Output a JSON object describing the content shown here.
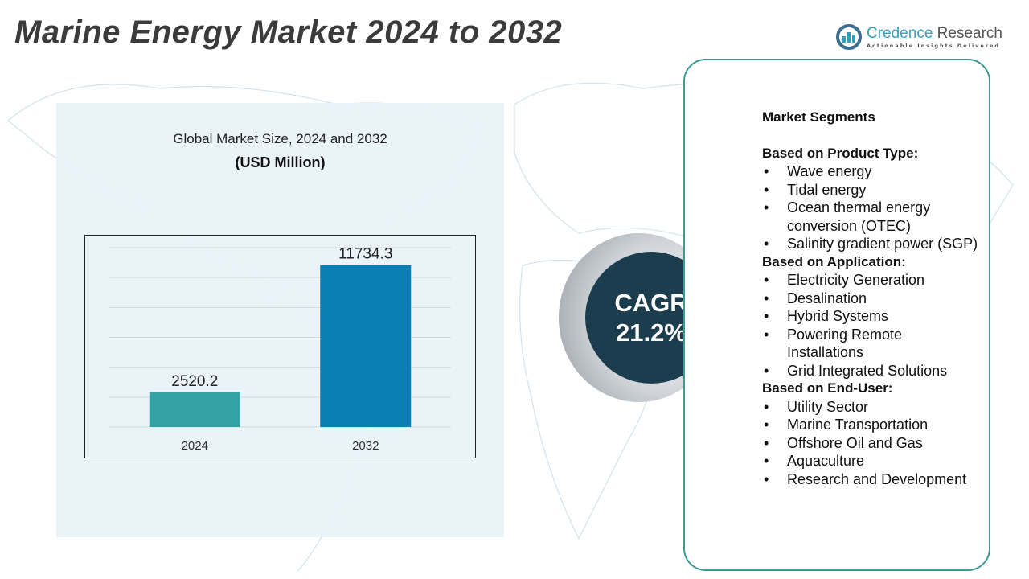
{
  "title": "Marine Energy Market 2024 to 2032",
  "logo": {
    "name_part1": "Credence",
    "name_part2": "Research",
    "tagline": "Actionable Insights Delivered"
  },
  "chart_data": {
    "type": "bar",
    "title": "Global Market Size, 2024 and 2032",
    "subtitle": "(USD Million)",
    "categories": [
      "2024",
      "2032"
    ],
    "values": [
      2520.2,
      11734.3
    ],
    "data_labels": [
      "2520.2",
      "11734.3"
    ],
    "colors": [
      "#35a3a3",
      "#0a7fb3"
    ],
    "grid": true,
    "xlabel": "",
    "ylabel": "",
    "ylim": [
      0,
      13000
    ]
  },
  "cagr": {
    "label": "CAGR",
    "value": "21.2%"
  },
  "segments": {
    "heading": "Market Segments",
    "groups": [
      {
        "title": "Based on Product Type:",
        "items": [
          "Wave energy",
          "Tidal energy",
          "Ocean thermal energy conversion (OTEC)",
          "Salinity gradient power (SGP)"
        ]
      },
      {
        "title": "Based on Application:",
        "items": [
          "Electricity Generation",
          "Desalination",
          "Hybrid Systems",
          "Powering Remote Installations",
          "Grid Integrated Solutions"
        ]
      },
      {
        "title": "Based on End-User:",
        "items": [
          "Utility Sector",
          "Marine Transportation",
          "Offshore Oil and Gas",
          "Aquaculture",
          "Research and Development"
        ]
      }
    ]
  }
}
